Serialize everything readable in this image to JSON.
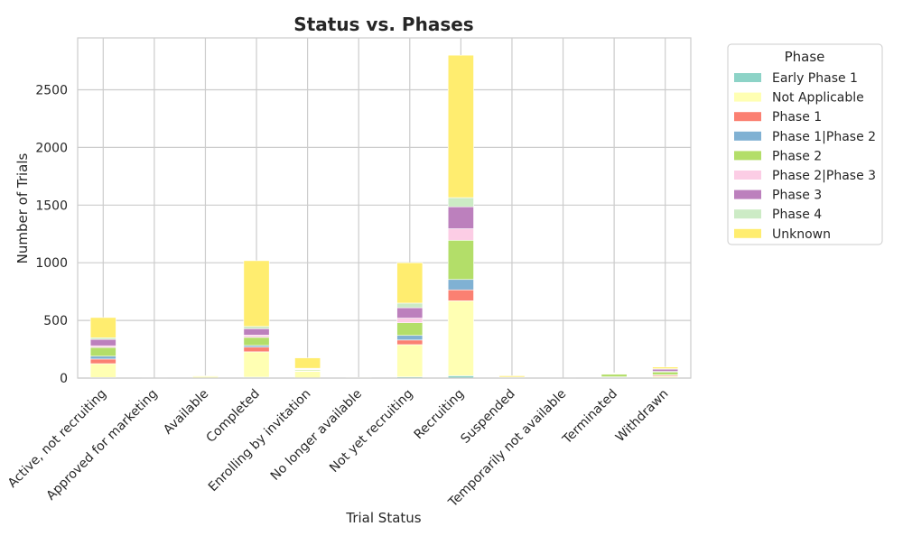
{
  "chart_data": {
    "type": "bar",
    "stacked": true,
    "title": "Status vs. Phases",
    "xlabel": "Trial Status",
    "ylabel": "Number of Trials",
    "ylim": [
      0,
      2950
    ],
    "yticks": [
      0,
      500,
      1000,
      1500,
      2000,
      2500
    ],
    "grid": true,
    "legend": {
      "title": "Phase",
      "placement": "outside-top-right"
    },
    "categories": [
      "Active, not recruiting",
      "Approved for marketing",
      "Available",
      "Completed",
      "Enrolling by invitation",
      "No longer available",
      "Not yet recruiting",
      "Recruiting",
      "Suspended",
      "Temporarily not available",
      "Terminated",
      "Withdrawn"
    ],
    "series": [
      {
        "name": "Early Phase 1",
        "color": "#8dd3c7",
        "values": [
          5,
          0,
          0,
          8,
          2,
          0,
          10,
          20,
          0,
          0,
          0,
          1
        ]
      },
      {
        "name": "Not Applicable",
        "color": "#ffffb3",
        "values": [
          120,
          1,
          15,
          220,
          55,
          3,
          280,
          650,
          4,
          1,
          8,
          12
        ]
      },
      {
        "name": "Phase 1",
        "color": "#fb8072",
        "values": [
          40,
          0,
          0,
          40,
          5,
          0,
          40,
          95,
          1,
          0,
          2,
          10
        ]
      },
      {
        "name": "Phase 1|Phase 2",
        "color": "#80b1d3",
        "values": [
          25,
          0,
          0,
          15,
          3,
          0,
          40,
          90,
          0,
          0,
          1,
          5
        ]
      },
      {
        "name": "Phase 2",
        "color": "#b3de69",
        "values": [
          75,
          0,
          0,
          70,
          10,
          0,
          110,
          340,
          2,
          0,
          25,
          25
        ]
      },
      {
        "name": "Phase 2|Phase 3",
        "color": "#fccde5",
        "values": [
          15,
          0,
          0,
          20,
          2,
          0,
          40,
          100,
          0,
          0,
          1,
          5
        ]
      },
      {
        "name": "Phase 3",
        "color": "#bc80bd",
        "values": [
          55,
          0,
          0,
          55,
          5,
          0,
          90,
          190,
          1,
          0,
          3,
          20
        ]
      },
      {
        "name": "Phase 4",
        "color": "#ccebc5",
        "values": [
          15,
          0,
          0,
          20,
          3,
          0,
          40,
          80,
          0,
          0,
          1,
          3
        ]
      },
      {
        "name": "Unknown",
        "color": "#ffed6f",
        "values": [
          175,
          1,
          5,
          570,
          90,
          2,
          350,
          1235,
          12,
          1,
          5,
          15
        ]
      }
    ]
  }
}
